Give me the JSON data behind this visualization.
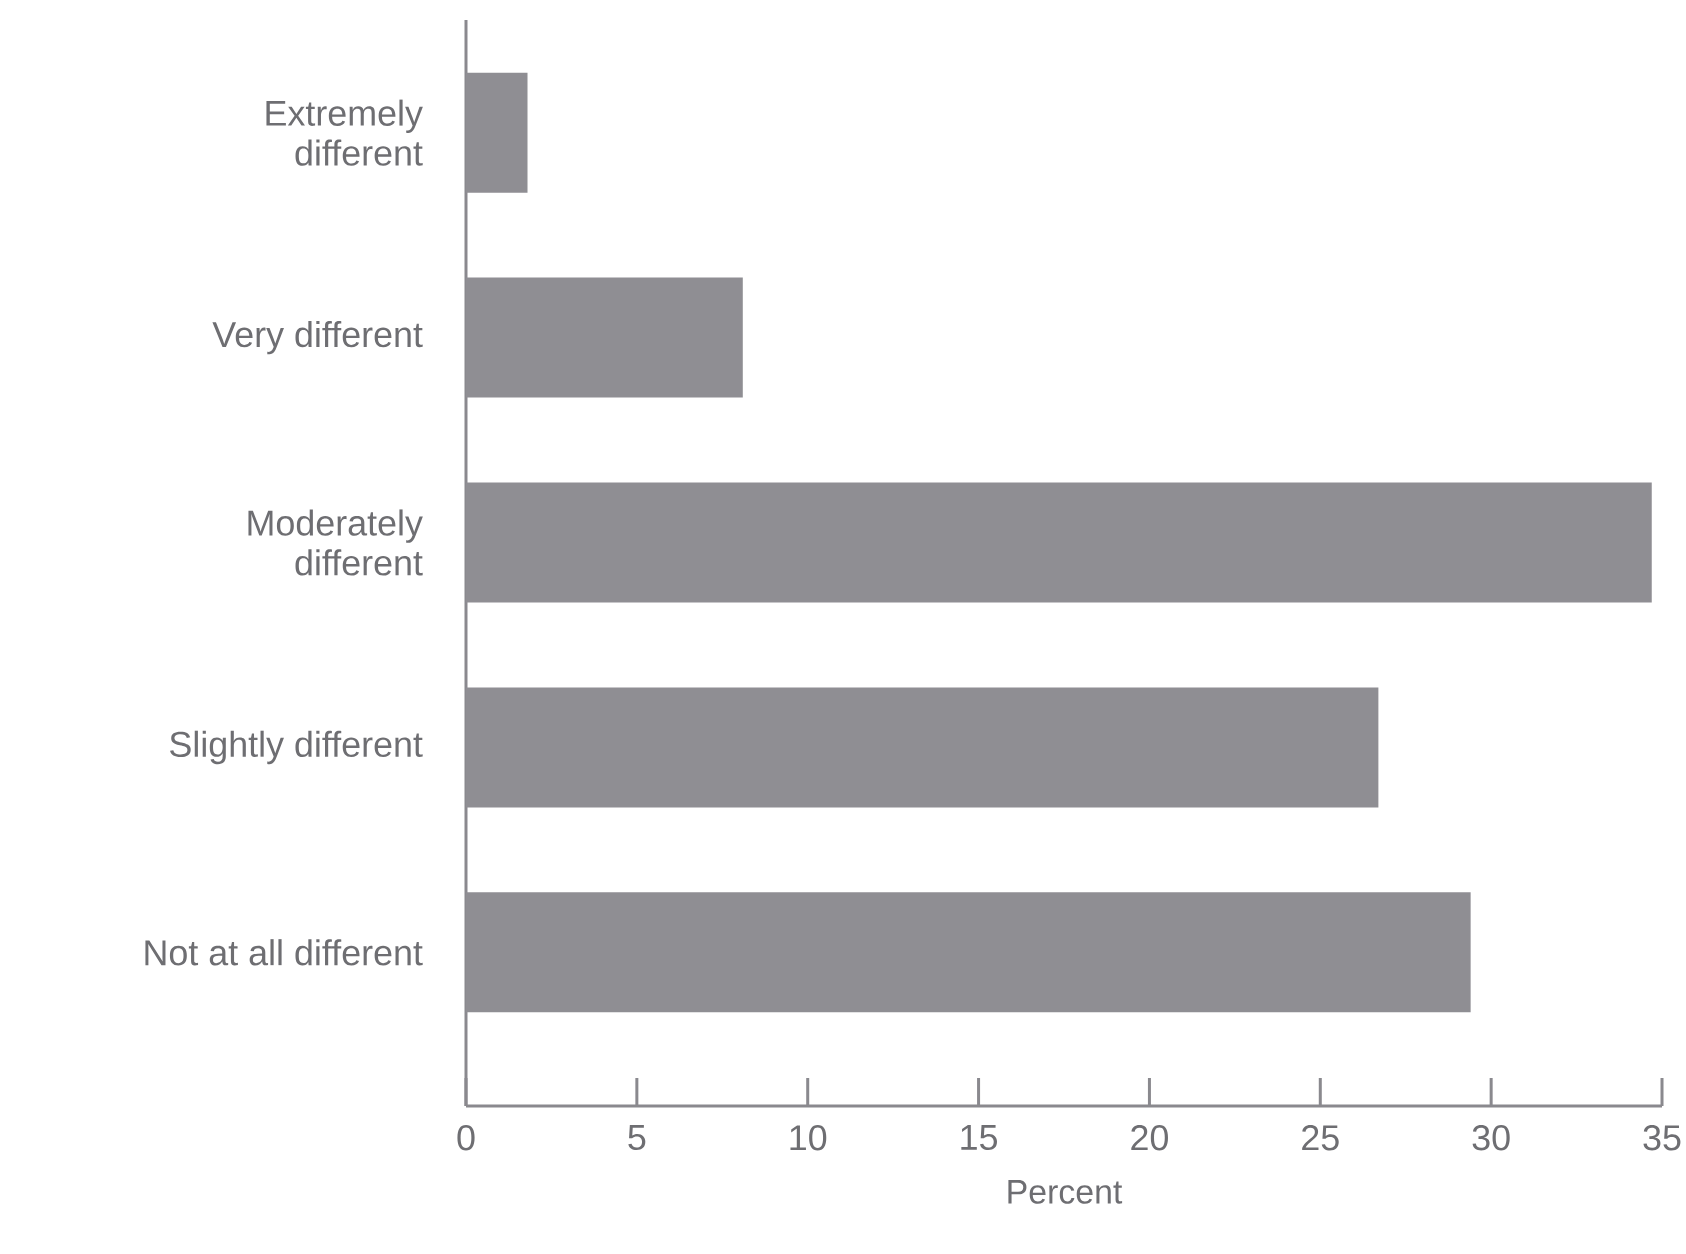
{
  "chart_data": {
    "type": "bar",
    "orientation": "horizontal",
    "xlabel": "Percent",
    "categories": [
      "Extremely different",
      "Very different",
      "Moderately different",
      "Slightly different",
      "Not at all different"
    ],
    "values": [
      1.8,
      8.1,
      34.7,
      26.7,
      29.4
    ],
    "color": "#8f8e93",
    "xlim": [
      0,
      35
    ],
    "xticks": [
      0,
      5,
      10,
      15,
      20,
      25,
      30,
      35
    ]
  }
}
